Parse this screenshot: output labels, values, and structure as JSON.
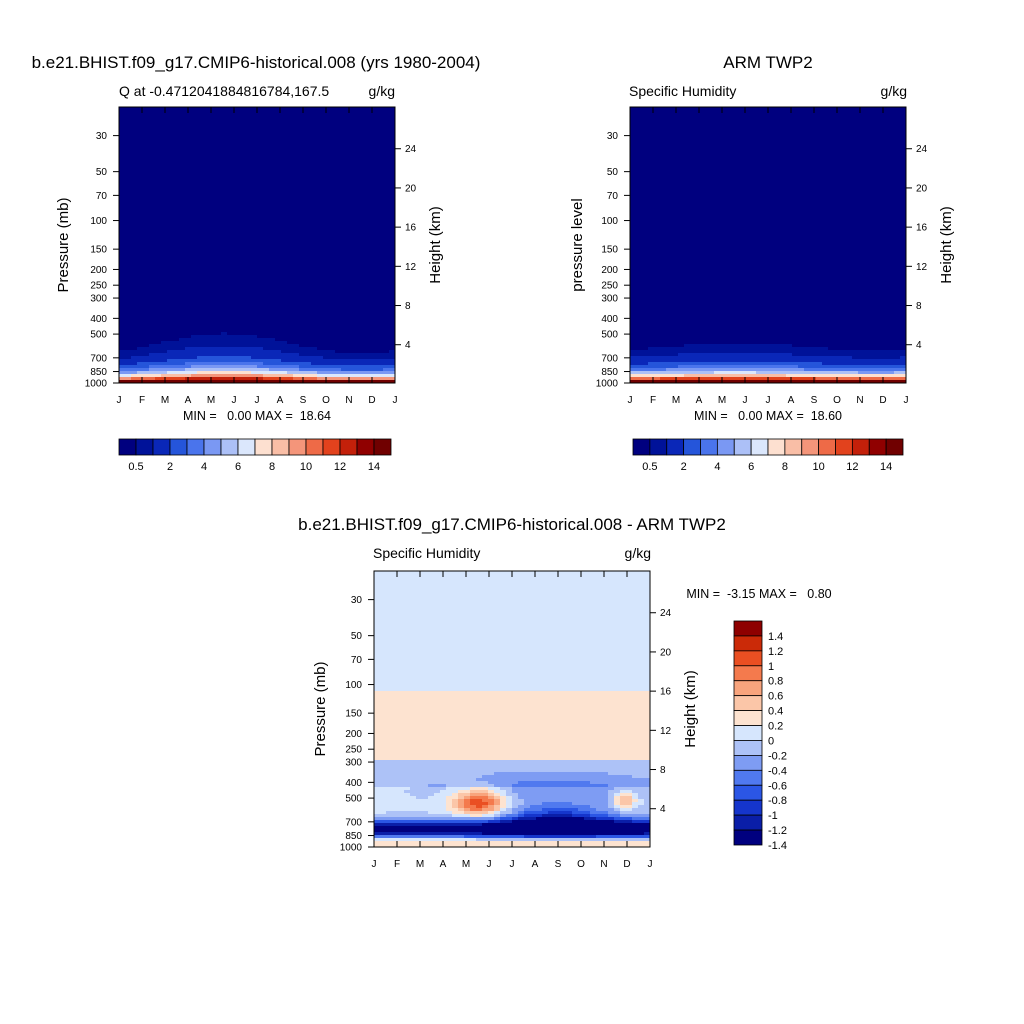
{
  "months": [
    "J",
    "F",
    "M",
    "A",
    "M",
    "J",
    "J",
    "A",
    "S",
    "O",
    "N",
    "D",
    "J"
  ],
  "colors": {
    "seq": [
      "#00007f",
      "#001299",
      "#0a27b8",
      "#2555da",
      "#4a74ec",
      "#7a98f3",
      "#acc0f7",
      "#dbe7fc",
      "#fde0d0",
      "#f9bea6",
      "#f4957a",
      "#ee6a47",
      "#e2421d",
      "#c3200a",
      "#900000",
      "#700000"
    ],
    "diff": [
      "#00007f",
      "#0a1ea8",
      "#1535cc",
      "#2b56e5",
      "#5079ef",
      "#7e9cf3",
      "#adc2f7",
      "#d6e6fd",
      "#fde3d0",
      "#fbc6a8",
      "#f8a47d",
      "#f47a4d",
      "#ea4f22",
      "#cb2a08",
      "#8e0000"
    ]
  },
  "chart_data": [
    {
      "type": "heatmap",
      "title": "b.e21.BHIST.f09_g17.CMIP6-historical.008 (yrs 1980-2004)",
      "left_string": "Q at -0.4712041884816784,167.5",
      "right_string": "g/kg",
      "ylabel": "Pressure (mb)",
      "y2label": "Height (km)",
      "stats": "MIN =   0.00 MAX =  18.64",
      "min": 0.0,
      "max": 18.64,
      "pressure_ticks": [
        30,
        50,
        70,
        100,
        150,
        200,
        250,
        300,
        400,
        500,
        700,
        850,
        1000
      ],
      "height_ticks": [
        24,
        20,
        16,
        12,
        8,
        4
      ],
      "colorbar_labels": [
        "0.5",
        "2",
        "4",
        "6",
        "8",
        "10",
        "12",
        "14"
      ],
      "colorbar_levels": [
        0.5,
        1,
        2,
        3,
        4,
        5,
        6,
        7,
        8,
        9,
        10,
        11,
        12,
        13,
        14
      ],
      "ylim": [
        1000,
        20
      ],
      "x": [
        "J",
        "F",
        "M",
        "A",
        "M",
        "J",
        "J",
        "A",
        "S",
        "O",
        "N",
        "D",
        "J"
      ]
    },
    {
      "type": "heatmap",
      "title": "ARM TWP2",
      "left_string": "Specific Humidity",
      "right_string": "g/kg",
      "ylabel": "pressure level",
      "y2label": "Height (km)",
      "stats": "MIN =   0.00 MAX =  18.60",
      "min": 0.0,
      "max": 18.6,
      "pressure_ticks": [
        30,
        50,
        70,
        100,
        150,
        200,
        250,
        300,
        400,
        500,
        700,
        850,
        1000
      ],
      "height_ticks": [
        24,
        20,
        16,
        12,
        8,
        4
      ],
      "colorbar_labels": [
        "0.5",
        "2",
        "4",
        "6",
        "8",
        "10",
        "12",
        "14"
      ],
      "colorbar_levels": [
        0.5,
        1,
        2,
        3,
        4,
        5,
        6,
        7,
        8,
        9,
        10,
        11,
        12,
        13,
        14
      ],
      "ylim": [
        1000,
        20
      ],
      "x": [
        "J",
        "F",
        "M",
        "A",
        "M",
        "J",
        "J",
        "A",
        "S",
        "O",
        "N",
        "D",
        "J"
      ]
    },
    {
      "type": "heatmap",
      "title": "b.e21.BHIST.f09_g17.CMIP6-historical.008 - ARM TWP2",
      "left_string": "Specific Humidity",
      "right_string": "g/kg",
      "ylabel": "Pressure (mb)",
      "y2label": "Height (km)",
      "stats": "MIN =  -3.15 MAX =   0.80",
      "min": -3.15,
      "max": 0.8,
      "pressure_ticks": [
        30,
        50,
        70,
        100,
        150,
        200,
        250,
        300,
        400,
        500,
        700,
        850,
        1000
      ],
      "height_ticks": [
        24,
        20,
        16,
        12,
        8,
        4
      ],
      "colorbar_labels": [
        "1.4",
        "1.2",
        "1",
        "0.8",
        "0.6",
        "0.4",
        "0.2",
        "0",
        "-0.2",
        "-0.4",
        "-0.6",
        "-0.8",
        "-1",
        "-1.2",
        "-1.4"
      ],
      "colorbar_levels": [
        -1.4,
        -1.2,
        -1,
        -0.8,
        -0.6,
        -0.4,
        -0.2,
        0,
        0.2,
        0.4,
        0.6,
        0.8,
        1,
        1.2,
        1.4
      ],
      "ylim": [
        1000,
        20
      ],
      "x": [
        "J",
        "F",
        "M",
        "A",
        "M",
        "J",
        "J",
        "A",
        "S",
        "O",
        "N",
        "D",
        "J"
      ]
    }
  ]
}
